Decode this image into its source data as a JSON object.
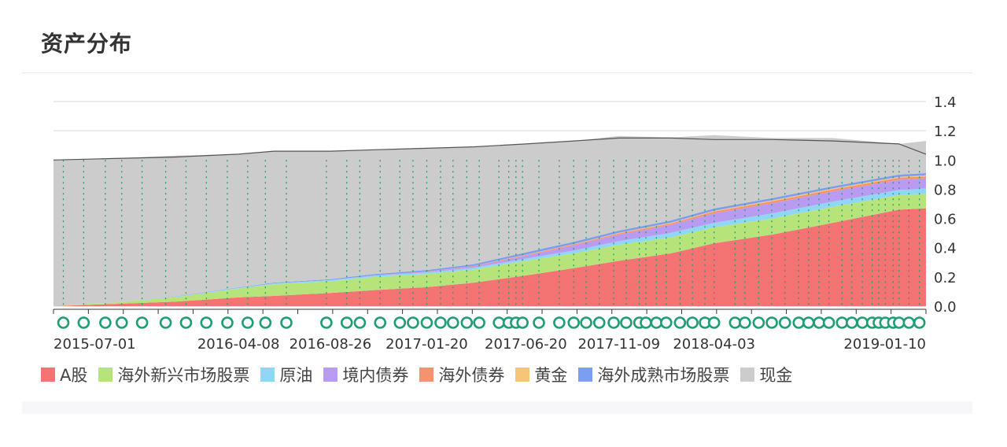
{
  "page": {
    "title": "资产分布"
  },
  "chart_data": {
    "type": "area",
    "stacked": true,
    "x_range": [
      "2015-07-01",
      "2019-02-20"
    ],
    "ylim": [
      0,
      1.4
    ],
    "yticks": [
      0.0,
      0.2,
      0.4,
      0.6,
      0.8,
      1.0,
      1.2,
      1.4
    ],
    "ytick_labels": [
      "0.0",
      "0.2",
      "0.4",
      "0.6",
      "0.8",
      "1.0",
      "1.2",
      "1.4"
    ],
    "xtick_labels": [
      "2015-07-01",
      "2016-04-08",
      "2016-08-26",
      "2017-01-20",
      "2017-06-20",
      "2017-11-09",
      "2018-04-03",
      "2019-01-10"
    ],
    "grid": true,
    "legend_position": "bottom",
    "x": [
      "2015-07-01",
      "2015-10-01",
      "2016-01-01",
      "2016-04-08",
      "2016-06-01",
      "2016-08-26",
      "2016-11-01",
      "2017-01-20",
      "2017-04-01",
      "2017-06-20",
      "2017-09-01",
      "2017-11-09",
      "2018-01-26",
      "2018-04-03",
      "2018-07-01",
      "2018-10-01",
      "2019-01-10",
      "2019-02-20"
    ],
    "series": [
      {
        "name": "A股",
        "color": "#f47474",
        "values": [
          0.0,
          0.015,
          0.03,
          0.06,
          0.07,
          0.09,
          0.11,
          0.13,
          0.16,
          0.21,
          0.26,
          0.31,
          0.36,
          0.43,
          0.49,
          0.57,
          0.66,
          0.67
        ]
      },
      {
        "name": "海外新兴市场股票",
        "color": "#b7e47a",
        "values": [
          0.0,
          0.01,
          0.03,
          0.06,
          0.08,
          0.08,
          0.09,
          0.09,
          0.09,
          0.1,
          0.1,
          0.11,
          0.11,
          0.11,
          0.11,
          0.11,
          0.1,
          0.1
        ]
      },
      {
        "name": "原油",
        "color": "#8fd7f5",
        "values": [
          0.0,
          0.0,
          0.003,
          0.005,
          0.006,
          0.008,
          0.009,
          0.01,
          0.012,
          0.015,
          0.02,
          0.025,
          0.03,
          0.03,
          0.035,
          0.035,
          0.035,
          0.035
        ]
      },
      {
        "name": "境内债券",
        "color": "#b99cf2",
        "values": [
          0.0,
          0.0,
          0.0,
          0.0,
          0.0,
          0.0,
          0.002,
          0.005,
          0.01,
          0.02,
          0.035,
          0.045,
          0.055,
          0.065,
          0.07,
          0.07,
          0.07,
          0.07
        ]
      },
      {
        "name": "海外债券",
        "color": "#f69270",
        "values": [
          0.0,
          0.0,
          0.0,
          0.0,
          0.0,
          0.0,
          0.0,
          0.002,
          0.003,
          0.005,
          0.007,
          0.008,
          0.01,
          0.012,
          0.013,
          0.013,
          0.013,
          0.013
        ]
      },
      {
        "name": "黄金",
        "color": "#f7c577",
        "values": [
          0.0,
          0.0,
          0.0,
          0.0,
          0.0,
          0.0,
          0.0,
          0.0,
          0.0,
          0.002,
          0.003,
          0.004,
          0.005,
          0.006,
          0.007,
          0.007,
          0.007,
          0.007
        ]
      },
      {
        "name": "海外成熟市场股票",
        "color": "#7b9ef0",
        "values": [
          0.0,
          0.0,
          0.002,
          0.003,
          0.005,
          0.006,
          0.008,
          0.01,
          0.012,
          0.015,
          0.015,
          0.015,
          0.015,
          0.015,
          0.015,
          0.015,
          0.015,
          0.015
        ]
      },
      {
        "name": "现金",
        "color": "#cccccc",
        "values": [
          1.0,
          0.985,
          0.965,
          0.912,
          0.899,
          0.876,
          0.851,
          0.833,
          0.804,
          0.743,
          0.69,
          0.647,
          0.569,
          0.502,
          0.41,
          0.33,
          0.21,
          0.22
        ]
      }
    ],
    "total_line": [
      1.0,
      1.01,
      1.02,
      1.04,
      1.06,
      1.06,
      1.07,
      1.08,
      1.09,
      1.11,
      1.13,
      1.15,
      1.15,
      1.14,
      1.14,
      1.13,
      1.11,
      1.04
    ],
    "rebalance_markers": [
      "2015-07-16",
      "2015-08-16",
      "2015-09-18",
      "2015-10-13",
      "2015-11-13",
      "2015-12-19",
      "2016-01-19",
      "2016-02-19",
      "2016-03-22",
      "2016-04-22",
      "2016-05-19",
      "2016-06-20",
      "2016-08-20",
      "2016-09-20",
      "2016-10-10",
      "2016-11-10",
      "2016-12-10",
      "2016-12-30",
      "2017-01-20",
      "2017-02-10",
      "2017-03-01",
      "2017-03-22",
      "2017-04-10",
      "2017-05-10",
      "2017-05-25",
      "2017-06-05",
      "2017-06-15",
      "2017-07-10",
      "2017-08-10",
      "2017-09-01",
      "2017-09-20",
      "2017-10-10",
      "2017-11-01",
      "2017-11-20",
      "2017-12-10",
      "2017-12-20",
      "2018-01-05",
      "2018-01-20",
      "2018-02-10",
      "2018-03-01",
      "2018-03-20",
      "2018-04-03",
      "2018-05-05",
      "2018-05-20",
      "2018-06-10",
      "2018-06-30",
      "2018-07-20",
      "2018-08-10",
      "2018-08-25",
      "2018-09-10",
      "2018-09-25",
      "2018-10-15",
      "2018-10-30",
      "2018-11-15",
      "2018-11-30",
      "2018-12-10",
      "2018-12-20",
      "2019-01-01",
      "2019-01-10",
      "2019-01-25",
      "2019-02-10"
    ]
  }
}
